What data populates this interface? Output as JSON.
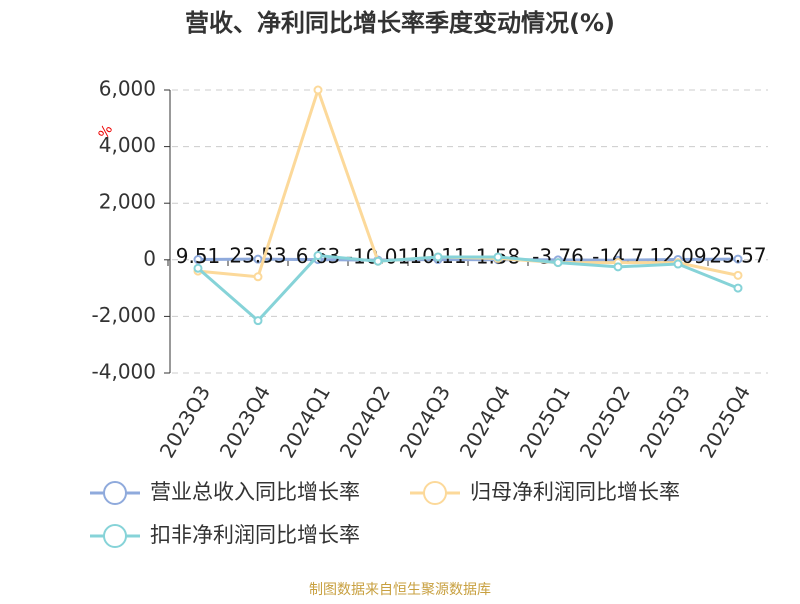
{
  "chart_data": {
    "type": "line",
    "title": "营收、净利同比增长率季度变动情况(%)",
    "y_label": "%",
    "categories": [
      "2023Q3",
      "2023Q4",
      "2024Q1",
      "2024Q2",
      "2024Q3",
      "2024Q4",
      "2025Q1",
      "2025Q2",
      "2025Q3",
      "2025Q4"
    ],
    "series": [
      {
        "name": "营业总收入同比增长率",
        "color": "#8faadc",
        "values": [
          9.51,
          23.53,
          6.63,
          -10.01,
          10.11,
          1.58,
          -3.76,
          -14.7,
          12.09,
          25.57
        ],
        "data_labels": true
      },
      {
        "name": "归母净利润同比增长率",
        "color": "#fcd99a",
        "values": [
          -400,
          -600,
          6000,
          -50,
          100,
          50,
          -100,
          -100,
          -100,
          -550
        ]
      },
      {
        "name": "扣非净利润同比增长率",
        "color": "#86d3d8",
        "values": [
          -300,
          -2150,
          150,
          -50,
          100,
          100,
          -100,
          -250,
          -150,
          -1000
        ]
      }
    ],
    "ylim": [
      -4000,
      6000
    ],
    "yticks": [
      {
        "value": -4000,
        "label": "-4,000"
      },
      {
        "value": -2000,
        "label": "-2,000"
      },
      0,
      {
        "value": 2000,
        "label": "2,000"
      },
      {
        "value": 4000,
        "label": "4,000"
      },
      {
        "value": 6000,
        "label": "6,000"
      }
    ],
    "grid": true,
    "legend": "bottom",
    "source": "制图数据来自恒生聚源数据库"
  }
}
